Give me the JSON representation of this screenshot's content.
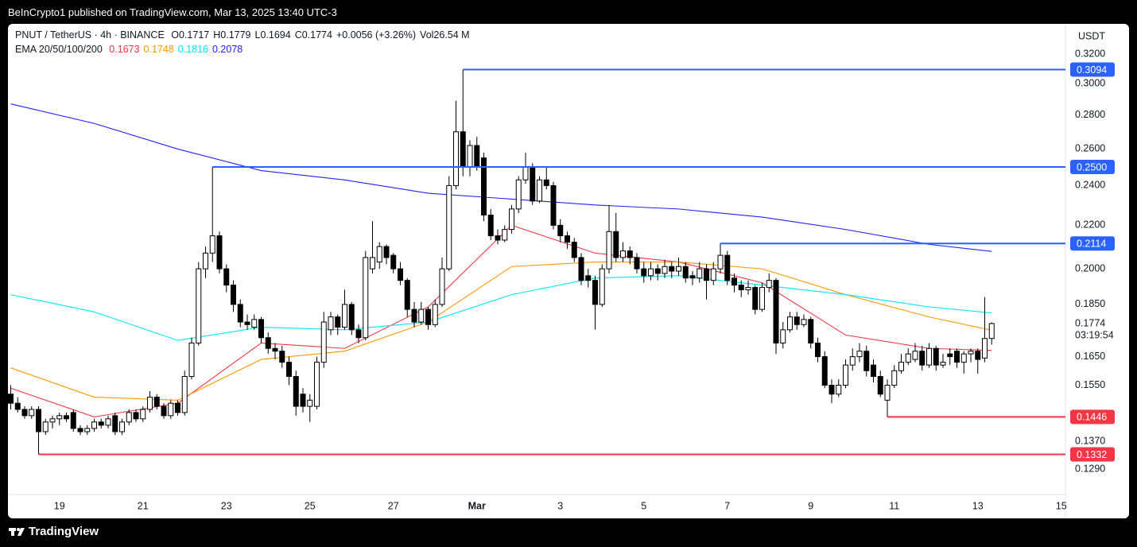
{
  "header": "BeInCrypto1 published on TradingView.com, Mar 13, 2025 13:40 UTC-3",
  "footer": "TradingView",
  "chart_data": {
    "type": "candlestick",
    "symbol": "PNUT / TetherUS · 4h · BINANCE",
    "legend": [
      "O0.1717",
      "H0.1779",
      "L0.1694",
      "C0.1774",
      "+0.0056 (+3.26%)",
      "Vol26.54 M"
    ],
    "ema_legend": "EMA 20/50/100/200",
    "currency": "USDT",
    "log": true,
    "grid": false,
    "up_color": "#ffffff",
    "down_color": "#000000",
    "ylim": [
      0.122,
      0.342
    ],
    "yticks": [
      {
        "value": 0.129,
        "label": "0.1290"
      },
      {
        "value": 0.137,
        "label": "0.1370"
      },
      {
        "value": 0.155,
        "label": "0.1550"
      },
      {
        "value": 0.165,
        "label": "0.1650"
      },
      {
        "value": 0.185,
        "label": "0.1850"
      },
      {
        "value": 0.2,
        "label": "0.2000"
      },
      {
        "value": 0.22,
        "label": "0.2200"
      },
      {
        "value": 0.24,
        "label": "0.2400"
      },
      {
        "value": 0.26,
        "label": "0.2600"
      },
      {
        "value": 0.28,
        "label": "0.2800"
      },
      {
        "value": 0.3,
        "label": "0.3000"
      },
      {
        "value": 0.32,
        "label": "0.3200"
      }
    ],
    "xlim": [
      -0.4,
      151.6
    ],
    "xticks": [
      {
        "value": 7,
        "label": "19"
      },
      {
        "value": 19,
        "label": "21"
      },
      {
        "value": 31,
        "label": "23"
      },
      {
        "value": 43,
        "label": "25"
      },
      {
        "value": 55,
        "label": "27"
      },
      {
        "value": 67,
        "label": "Mar"
      },
      {
        "value": 79,
        "label": "3"
      },
      {
        "value": 91,
        "label": "5"
      },
      {
        "value": 103,
        "label": "7"
      },
      {
        "value": 115,
        "label": "9"
      },
      {
        "value": 127,
        "label": "11"
      },
      {
        "value": 139,
        "label": "13"
      },
      {
        "value": 151,
        "label": "15"
      }
    ],
    "ohlc": [
      [
        0.152,
        0.155,
        0.147,
        0.149
      ],
      [
        0.149,
        0.151,
        0.146,
        0.147
      ],
      [
        0.147,
        0.148,
        0.144,
        0.145
      ],
      [
        0.145,
        0.148,
        0.144,
        0.147
      ],
      [
        0.147,
        0.148,
        0.1332,
        0.14
      ],
      [
        0.14,
        0.144,
        0.139,
        0.143
      ],
      [
        0.143,
        0.145,
        0.141,
        0.144
      ],
      [
        0.144,
        0.146,
        0.142,
        0.145
      ],
      [
        0.145,
        0.146,
        0.143,
        0.144
      ],
      [
        0.146,
        0.147,
        0.14,
        0.141
      ],
      [
        0.141,
        0.142,
        0.139,
        0.14
      ],
      [
        0.14,
        0.142,
        0.139,
        0.141
      ],
      [
        0.141,
        0.144,
        0.14,
        0.143
      ],
      [
        0.143,
        0.144,
        0.141,
        0.142
      ],
      [
        0.142,
        0.145,
        0.141,
        0.144
      ],
      [
        0.145,
        0.146,
        0.139,
        0.14
      ],
      [
        0.14,
        0.144,
        0.139,
        0.143
      ],
      [
        0.143,
        0.147,
        0.142,
        0.146
      ],
      [
        0.146,
        0.147,
        0.143,
        0.144
      ],
      [
        0.144,
        0.148,
        0.143,
        0.147
      ],
      [
        0.147,
        0.153,
        0.146,
        0.151
      ],
      [
        0.151,
        0.152,
        0.147,
        0.148
      ],
      [
        0.148,
        0.149,
        0.144,
        0.145
      ],
      [
        0.145,
        0.15,
        0.144,
        0.149
      ],
      [
        0.149,
        0.15,
        0.145,
        0.146
      ],
      [
        0.146,
        0.16,
        0.145,
        0.158
      ],
      [
        0.158,
        0.172,
        0.157,
        0.17
      ],
      [
        0.17,
        0.203,
        0.169,
        0.2
      ],
      [
        0.2,
        0.21,
        0.196,
        0.207
      ],
      [
        0.207,
        0.25,
        0.203,
        0.215
      ],
      [
        0.215,
        0.217,
        0.198,
        0.2
      ],
      [
        0.2,
        0.202,
        0.19,
        0.193
      ],
      [
        0.193,
        0.195,
        0.182,
        0.185
      ],
      [
        0.185,
        0.187,
        0.176,
        0.178
      ],
      [
        0.178,
        0.181,
        0.175,
        0.177
      ],
      [
        0.176,
        0.181,
        0.175,
        0.179
      ],
      [
        0.179,
        0.18,
        0.17,
        0.172
      ],
      [
        0.172,
        0.174,
        0.166,
        0.168
      ],
      [
        0.168,
        0.17,
        0.164,
        0.167
      ],
      [
        0.167,
        0.169,
        0.161,
        0.163
      ],
      [
        0.163,
        0.165,
        0.155,
        0.158
      ],
      [
        0.158,
        0.16,
        0.145,
        0.148
      ],
      [
        0.152,
        0.154,
        0.146,
        0.148
      ],
      [
        0.148,
        0.152,
        0.143,
        0.15
      ],
      [
        0.148,
        0.165,
        0.147,
        0.163
      ],
      [
        0.163,
        0.182,
        0.161,
        0.178
      ],
      [
        0.175,
        0.182,
        0.173,
        0.18
      ],
      [
        0.18,
        0.181,
        0.173,
        0.176
      ],
      [
        0.176,
        0.191,
        0.175,
        0.185
      ],
      [
        0.185,
        0.186,
        0.173,
        0.175
      ],
      [
        0.175,
        0.177,
        0.17,
        0.172
      ],
      [
        0.172,
        0.208,
        0.171,
        0.205
      ],
      [
        0.2,
        0.222,
        0.198,
        0.205
      ],
      [
        0.203,
        0.212,
        0.2,
        0.21
      ],
      [
        0.21,
        0.211,
        0.202,
        0.205
      ],
      [
        0.206,
        0.207,
        0.198,
        0.2
      ],
      [
        0.2,
        0.203,
        0.193,
        0.195
      ],
      [
        0.195,
        0.196,
        0.18,
        0.183
      ],
      [
        0.183,
        0.186,
        0.176,
        0.178
      ],
      [
        0.178,
        0.186,
        0.177,
        0.183
      ],
      [
        0.183,
        0.184,
        0.175,
        0.177
      ],
      [
        0.177,
        0.187,
        0.176,
        0.185
      ],
      [
        0.185,
        0.205,
        0.184,
        0.2
      ],
      [
        0.2,
        0.245,
        0.199,
        0.24
      ],
      [
        0.24,
        0.289,
        0.238,
        0.27
      ],
      [
        0.27,
        0.3094,
        0.245,
        0.25
      ],
      [
        0.25,
        0.265,
        0.245,
        0.262
      ],
      [
        0.262,
        0.267,
        0.248,
        0.25
      ],
      [
        0.255,
        0.258,
        0.222,
        0.225
      ],
      [
        0.225,
        0.228,
        0.213,
        0.215
      ],
      [
        0.215,
        0.218,
        0.211,
        0.213
      ],
      [
        0.213,
        0.22,
        0.212,
        0.218
      ],
      [
        0.218,
        0.23,
        0.216,
        0.228
      ],
      [
        0.228,
        0.245,
        0.226,
        0.243
      ],
      [
        0.243,
        0.258,
        0.241,
        0.25
      ],
      [
        0.25,
        0.252,
        0.23,
        0.232
      ],
      [
        0.232,
        0.245,
        0.231,
        0.243
      ],
      [
        0.243,
        0.25,
        0.238,
        0.24
      ],
      [
        0.24,
        0.242,
        0.218,
        0.22
      ],
      [
        0.22,
        0.223,
        0.212,
        0.215
      ],
      [
        0.215,
        0.217,
        0.209,
        0.212
      ],
      [
        0.212,
        0.214,
        0.203,
        0.205
      ],
      [
        0.205,
        0.207,
        0.193,
        0.195
      ],
      [
        0.197,
        0.2,
        0.192,
        0.195
      ],
      [
        0.195,
        0.197,
        0.175,
        0.185
      ],
      [
        0.185,
        0.202,
        0.184,
        0.2
      ],
      [
        0.2,
        0.23,
        0.198,
        0.217
      ],
      [
        0.217,
        0.226,
        0.203,
        0.205
      ],
      [
        0.205,
        0.212,
        0.203,
        0.208
      ],
      [
        0.208,
        0.21,
        0.202,
        0.205
      ],
      [
        0.205,
        0.207,
        0.198,
        0.2
      ],
      [
        0.2,
        0.203,
        0.194,
        0.197
      ],
      [
        0.197,
        0.203,
        0.195,
        0.2
      ],
      [
        0.2,
        0.202,
        0.195,
        0.198
      ],
      [
        0.198,
        0.204,
        0.196,
        0.201
      ],
      [
        0.201,
        0.203,
        0.196,
        0.199
      ],
      [
        0.199,
        0.205,
        0.197,
        0.201
      ],
      [
        0.201,
        0.203,
        0.194,
        0.196
      ],
      [
        0.197,
        0.199,
        0.193,
        0.196
      ],
      [
        0.196,
        0.203,
        0.194,
        0.2
      ],
      [
        0.2,
        0.202,
        0.187,
        0.195
      ],
      [
        0.195,
        0.203,
        0.193,
        0.2
      ],
      [
        0.2,
        0.2114,
        0.198,
        0.206
      ],
      [
        0.206,
        0.208,
        0.193,
        0.195
      ],
      [
        0.196,
        0.198,
        0.19,
        0.193
      ],
      [
        0.193,
        0.195,
        0.188,
        0.191
      ],
      [
        0.191,
        0.195,
        0.189,
        0.192
      ],
      [
        0.192,
        0.193,
        0.181,
        0.183
      ],
      [
        0.183,
        0.194,
        0.182,
        0.192
      ],
      [
        0.192,
        0.198,
        0.19,
        0.195
      ],
      [
        0.195,
        0.196,
        0.166,
        0.17
      ],
      [
        0.17,
        0.178,
        0.168,
        0.175
      ],
      [
        0.175,
        0.182,
        0.174,
        0.18
      ],
      [
        0.18,
        0.182,
        0.175,
        0.177
      ],
      [
        0.177,
        0.181,
        0.176,
        0.179
      ],
      [
        0.179,
        0.18,
        0.168,
        0.17
      ],
      [
        0.17,
        0.172,
        0.163,
        0.165
      ],
      [
        0.165,
        0.167,
        0.154,
        0.155
      ],
      [
        0.155,
        0.157,
        0.149,
        0.152
      ],
      [
        0.152,
        0.157,
        0.151,
        0.155
      ],
      [
        0.155,
        0.164,
        0.154,
        0.162
      ],
      [
        0.162,
        0.168,
        0.16,
        0.165
      ],
      [
        0.165,
        0.17,
        0.163,
        0.167
      ],
      [
        0.167,
        0.169,
        0.158,
        0.16
      ],
      [
        0.162,
        0.164,
        0.156,
        0.158
      ],
      [
        0.158,
        0.16,
        0.151,
        0.152
      ],
      [
        0.15,
        0.157,
        0.1446,
        0.155
      ],
      [
        0.155,
        0.162,
        0.154,
        0.16
      ],
      [
        0.16,
        0.166,
        0.159,
        0.163
      ],
      [
        0.163,
        0.168,
        0.162,
        0.166
      ],
      [
        0.164,
        0.17,
        0.163,
        0.167
      ],
      [
        0.167,
        0.169,
        0.16,
        0.162
      ],
      [
        0.162,
        0.17,
        0.161,
        0.168
      ],
      [
        0.168,
        0.169,
        0.16,
        0.162
      ],
      [
        0.162,
        0.166,
        0.161,
        0.163
      ],
      [
        0.166,
        0.168,
        0.162,
        0.165
      ],
      [
        0.167,
        0.168,
        0.161,
        0.163
      ],
      [
        0.163,
        0.167,
        0.159,
        0.166
      ],
      [
        0.166,
        0.168,
        0.163,
        0.167
      ],
      [
        0.167,
        0.168,
        0.159,
        0.164
      ],
      [
        0.1645,
        0.188,
        0.163,
        0.1717
      ],
      [
        0.1717,
        0.1779,
        0.1694,
        0.1774
      ]
    ],
    "series": [
      {
        "color": "#f23645",
        "last_label": "0.1673",
        "x": [
          0,
          12,
          24,
          36,
          48,
          60,
          72,
          84,
          96,
          108,
          120,
          132,
          141
        ],
        "values": [
          0.154,
          0.1446,
          0.149,
          0.17,
          0.168,
          0.184,
          0.22,
          0.207,
          0.203,
          0.194,
          0.173,
          0.168,
          0.1673
        ]
      },
      {
        "color": "#ff9800",
        "last_label": "0.1748",
        "x": [
          0,
          12,
          24,
          36,
          48,
          60,
          72,
          84,
          96,
          108,
          120,
          132,
          141
        ],
        "values": [
          0.161,
          0.151,
          0.15,
          0.164,
          0.167,
          0.178,
          0.201,
          0.203,
          0.203,
          0.2,
          0.189,
          0.18,
          0.1748
        ]
      },
      {
        "color": "#00e5ff",
        "last_label": "0.1816",
        "x": [
          0,
          12,
          24,
          36,
          48,
          60,
          72,
          84,
          96,
          108,
          120,
          132,
          141
        ],
        "values": [
          0.189,
          0.182,
          0.171,
          0.176,
          0.175,
          0.178,
          0.189,
          0.196,
          0.197,
          0.193,
          0.189,
          0.184,
          0.1816
        ]
      },
      {
        "color": "#2121ff",
        "last_label": "0.2078",
        "x": [
          0,
          12,
          24,
          36,
          48,
          60,
          72,
          84,
          96,
          108,
          120,
          132,
          141
        ],
        "values": [
          0.287,
          0.275,
          0.26,
          0.248,
          0.243,
          0.236,
          0.233,
          0.23,
          0.228,
          0.224,
          0.218,
          0.211,
          0.2078
        ]
      }
    ],
    "levels": [
      {
        "value": 0.3094,
        "label": "0.3094",
        "start": 65,
        "color": "#2962ff"
      },
      {
        "value": 0.25,
        "label": "0.2500",
        "start": 29,
        "color": "#2962ff"
      },
      {
        "value": 0.2114,
        "label": "0.2114",
        "start": 102,
        "color": "#2962ff"
      },
      {
        "value": 0.1446,
        "label": "0.1446",
        "start": 126,
        "color": "#f23645"
      },
      {
        "value": 0.1332,
        "label": "0.1332",
        "start": 4,
        "color": "#f23645"
      }
    ],
    "price_label": {
      "value": 0.1774,
      "label": "0.1774",
      "countdown": "03:19:54"
    }
  }
}
